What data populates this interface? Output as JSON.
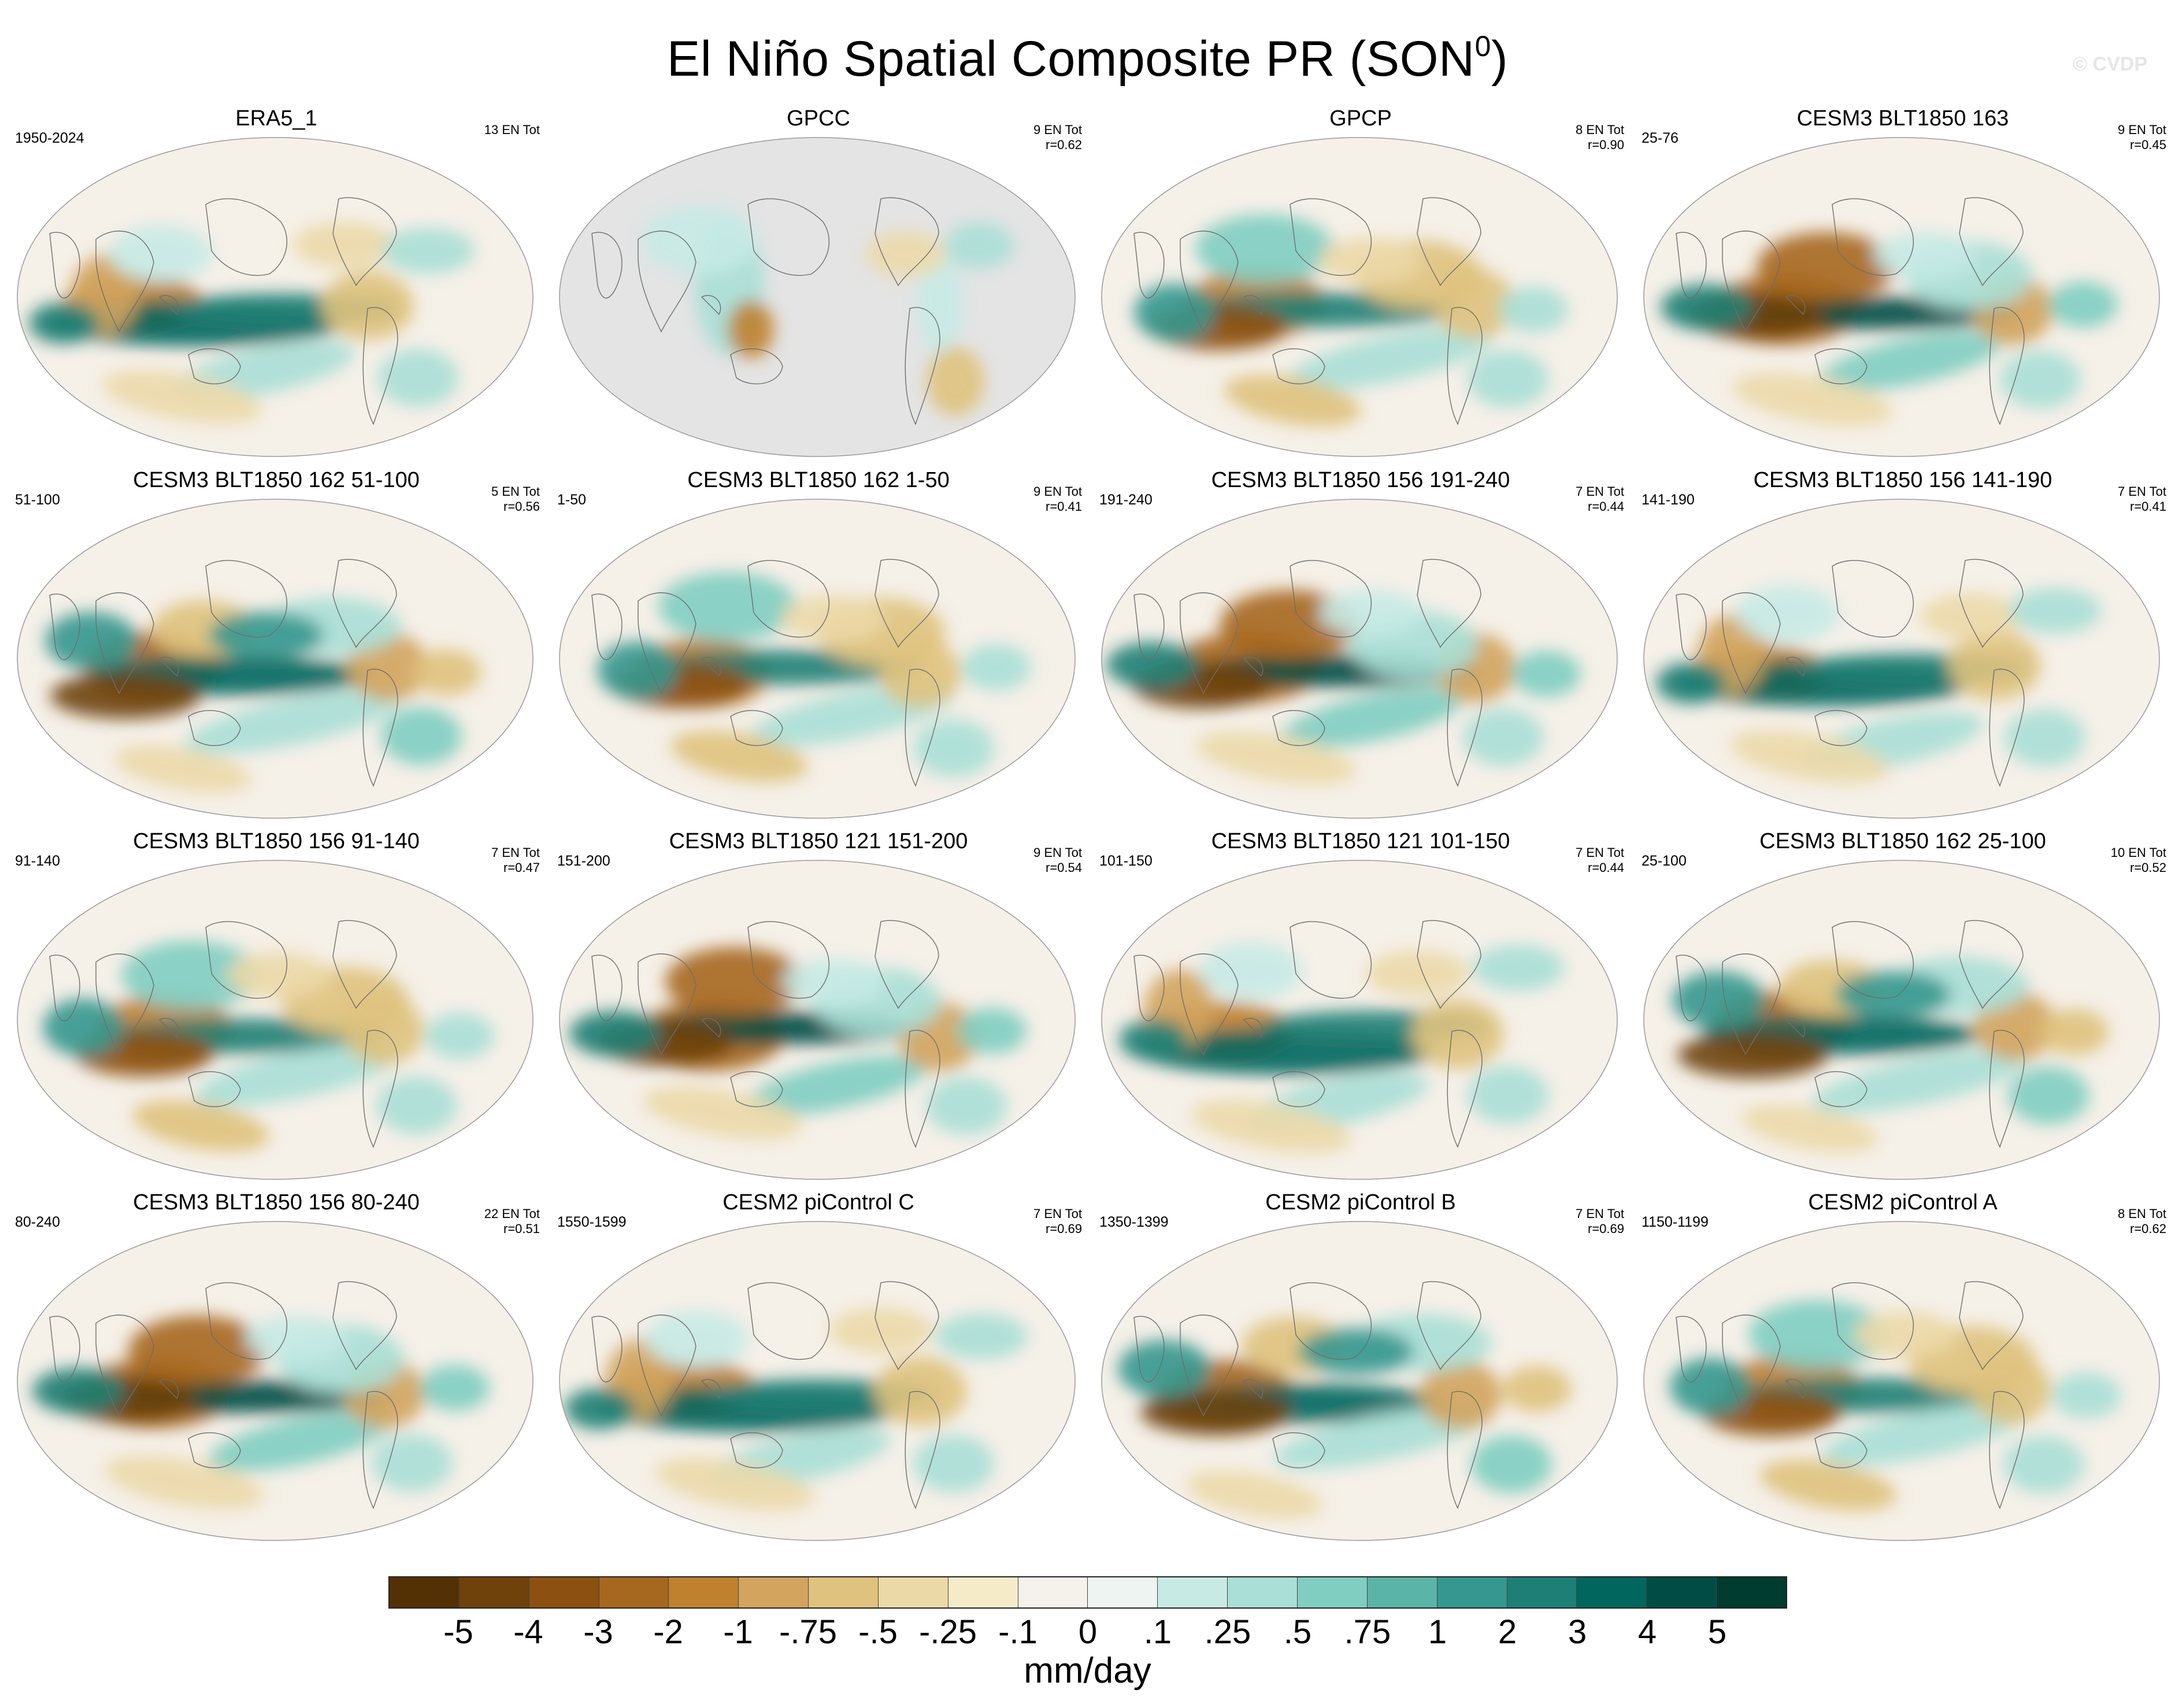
{
  "figure": {
    "title_main": "El Niño Spatial Composite PR (SON",
    "title_sup": "0",
    "title_close": ")",
    "watermark": "© CVDP"
  },
  "panels": [
    {
      "title": "ERA5_1",
      "period": "1950-2024",
      "count": "13 EN Tot",
      "r": ""
    },
    {
      "title": "GPCC",
      "period": "",
      "count": "9 EN Tot",
      "r": "r=0.62"
    },
    {
      "title": "GPCP",
      "period": "",
      "count": "8 EN Tot",
      "r": "r=0.90"
    },
    {
      "title": "CESM3 BLT1850 163",
      "period": "25-76",
      "count": "9 EN Tot",
      "r": "r=0.45"
    },
    {
      "title": "CESM3 BLT1850 162 51-100",
      "period": "51-100",
      "count": "5 EN Tot",
      "r": "r=0.56"
    },
    {
      "title": "CESM3 BLT1850 162 1-50",
      "period": "1-50",
      "count": "9 EN Tot",
      "r": "r=0.41"
    },
    {
      "title": "CESM3 BLT1850 156 191-240",
      "period": "191-240",
      "count": "7 EN Tot",
      "r": "r=0.44"
    },
    {
      "title": "CESM3 BLT1850 156 141-190",
      "period": "141-190",
      "count": "7 EN Tot",
      "r": "r=0.41"
    },
    {
      "title": "CESM3 BLT1850 156 91-140",
      "period": "91-140",
      "count": "7 EN Tot",
      "r": "r=0.47"
    },
    {
      "title": "CESM3 BLT1850 121 151-200",
      "period": "151-200",
      "count": "9 EN Tot",
      "r": "r=0.54"
    },
    {
      "title": "CESM3 BLT1850 121 101-150",
      "period": "101-150",
      "count": "7 EN Tot",
      "r": "r=0.44"
    },
    {
      "title": "CESM3 BLT1850 162 25-100",
      "period": "25-100",
      "count": "10 EN Tot",
      "r": "r=0.52"
    },
    {
      "title": "CESM3 BLT1850 156 80-240",
      "period": "80-240",
      "count": "22 EN Tot",
      "r": "r=0.51"
    },
    {
      "title": "CESM2 piControl C",
      "period": "1550-1599",
      "count": "7 EN Tot",
      "r": "r=0.69"
    },
    {
      "title": "CESM2 piControl B",
      "period": "1350-1399",
      "count": "7 EN Tot",
      "r": "r=0.69"
    },
    {
      "title": "CESM2 piControl A",
      "period": "1150-1199",
      "count": "8 EN Tot",
      "r": "r=0.62"
    }
  ],
  "colorbar": {
    "units": "mm/day",
    "tick_labels": [
      "-5",
      "-4",
      "-3",
      "-2",
      "-1",
      "-.75",
      "-.5",
      "-.25",
      "-.1",
      "0",
      ".1",
      ".25",
      ".5",
      ".75",
      "1",
      "2",
      "3",
      "4",
      "5"
    ],
    "colors": [
      "#543005",
      "#6f420b",
      "#8c5110",
      "#a6671f",
      "#bf812d",
      "#d2a45d",
      "#dfc27d",
      "#ecd9a8",
      "#f6ebc8",
      "#f5f2ec",
      "#eef4f2",
      "#c7eae5",
      "#a9dfd6",
      "#80cdc1",
      "#5ab4a8",
      "#35978f",
      "#1d7f76",
      "#01665e",
      "#014d45",
      "#003c30"
    ]
  },
  "map_colors": {
    "ocean_bg": "#f5f0e8",
    "missing": "#e4e4e4",
    "coast": "#6e6e6e"
  }
}
